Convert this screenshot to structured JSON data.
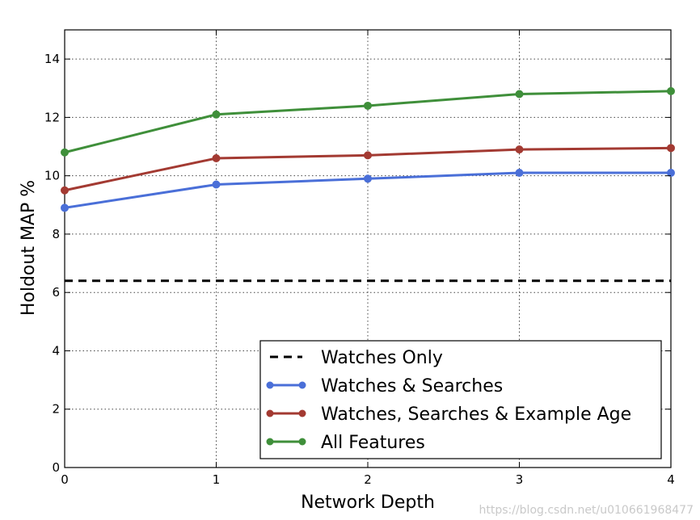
{
  "chart_data": {
    "type": "line",
    "xlabel": "Network Depth",
    "ylabel": "Holdout MAP %",
    "xlim": [
      0,
      4
    ],
    "ylim": [
      0,
      15
    ],
    "x_ticks": [
      0,
      1,
      2,
      3,
      4
    ],
    "y_ticks": [
      0,
      2,
      4,
      6,
      8,
      10,
      12,
      14
    ],
    "grid": true,
    "legend_position": "bottom-right",
    "x": [
      0,
      1,
      2,
      3,
      4
    ],
    "series": [
      {
        "name": "Watches Only",
        "style": "dashed",
        "color": "#000000",
        "values": [
          6.4,
          6.4,
          6.4,
          6.4,
          6.4
        ]
      },
      {
        "name": "Watches & Searches",
        "style": "line-marker",
        "color": "#4a6fd8",
        "values": [
          8.9,
          9.7,
          9.9,
          10.1,
          10.1
        ]
      },
      {
        "name": "Watches, Searches & Example Age",
        "style": "line-marker",
        "color": "#a33a32",
        "values": [
          9.5,
          10.6,
          10.7,
          10.9,
          10.95
        ]
      },
      {
        "name": "All Features",
        "style": "line-marker",
        "color": "#3f8f3a",
        "values": [
          10.8,
          12.1,
          12.4,
          12.8,
          12.9
        ]
      }
    ]
  },
  "watermark": "https://blog.csdn.net/u010661968477"
}
